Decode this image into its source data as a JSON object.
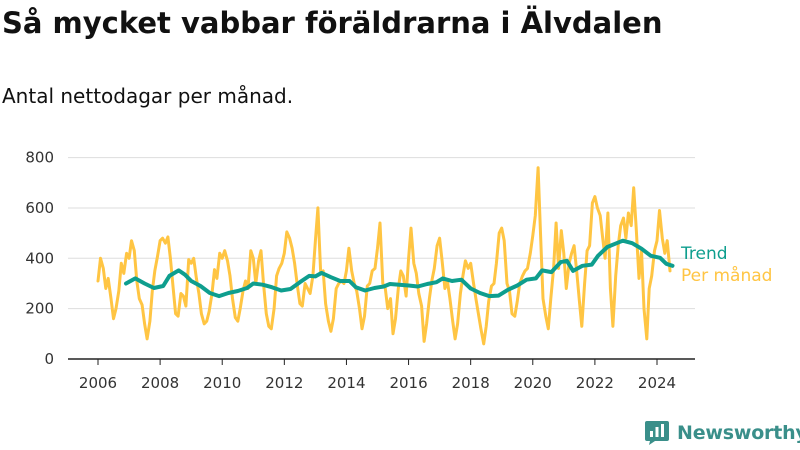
{
  "title": "Så mycket vabbar föräldrarna i Älvdalen",
  "subtitle": "Antal nettodagar per månad.",
  "brand": {
    "name": "Newsworthy",
    "icon": "chart-bubble-icon"
  },
  "colors": {
    "monthly": "#FFC543",
    "trend": "#0E9E8E",
    "axis": "#222222",
    "grid": "#dddddd"
  },
  "chart_data": {
    "type": "line",
    "x_unit": "year",
    "xlim": [
      2005.6,
      2024.9
    ],
    "ylim": [
      0,
      850
    ],
    "x_ticks": [
      2006,
      2008,
      2010,
      2012,
      2014,
      2016,
      2018,
      2020,
      2022,
      2024
    ],
    "y_ticks": [
      0,
      200,
      400,
      600,
      800
    ],
    "grid": "horizontal",
    "legend": "right-of-plot",
    "series": [
      {
        "name": "Trend",
        "color": "#0E9E8E",
        "points": [
          [
            2006.9,
            300
          ],
          [
            2007.2,
            320
          ],
          [
            2007.5,
            300
          ],
          [
            2007.8,
            282
          ],
          [
            2008.1,
            290
          ],
          [
            2008.3,
            330
          ],
          [
            2008.6,
            352
          ],
          [
            2008.8,
            335
          ],
          [
            2009.0,
            310
          ],
          [
            2009.3,
            290
          ],
          [
            2009.6,
            262
          ],
          [
            2009.9,
            250
          ],
          [
            2010.2,
            262
          ],
          [
            2010.5,
            270
          ],
          [
            2010.8,
            282
          ],
          [
            2011.0,
            300
          ],
          [
            2011.3,
            295
          ],
          [
            2011.6,
            285
          ],
          [
            2011.9,
            272
          ],
          [
            2012.2,
            278
          ],
          [
            2012.5,
            305
          ],
          [
            2012.8,
            330
          ],
          [
            2013.0,
            328
          ],
          [
            2013.2,
            342
          ],
          [
            2013.5,
            325
          ],
          [
            2013.8,
            310
          ],
          [
            2014.1,
            310
          ],
          [
            2014.3,
            285
          ],
          [
            2014.6,
            272
          ],
          [
            2014.9,
            282
          ],
          [
            2015.2,
            288
          ],
          [
            2015.4,
            298
          ],
          [
            2015.7,
            295
          ],
          [
            2016.0,
            292
          ],
          [
            2016.3,
            288
          ],
          [
            2016.6,
            298
          ],
          [
            2016.9,
            305
          ],
          [
            2017.1,
            320
          ],
          [
            2017.4,
            310
          ],
          [
            2017.7,
            315
          ],
          [
            2018.0,
            280
          ],
          [
            2018.3,
            262
          ],
          [
            2018.6,
            250
          ],
          [
            2018.9,
            252
          ],
          [
            2019.2,
            275
          ],
          [
            2019.5,
            292
          ],
          [
            2019.8,
            315
          ],
          [
            2020.1,
            320
          ],
          [
            2020.3,
            352
          ],
          [
            2020.6,
            345
          ],
          [
            2020.9,
            385
          ],
          [
            2021.1,
            390
          ],
          [
            2021.3,
            350
          ],
          [
            2021.6,
            370
          ],
          [
            2021.9,
            375
          ],
          [
            2022.1,
            410
          ],
          [
            2022.4,
            445
          ],
          [
            2022.7,
            460
          ],
          [
            2022.9,
            470
          ],
          [
            2023.2,
            460
          ],
          [
            2023.5,
            438
          ],
          [
            2023.8,
            410
          ],
          [
            2024.1,
            402
          ],
          [
            2024.3,
            378
          ],
          [
            2024.5,
            370
          ]
        ]
      },
      {
        "name": "Per månad",
        "color": "#FFC543",
        "points": [
          [
            2006.0,
            310
          ],
          [
            2006.08,
            400
          ],
          [
            2006.17,
            360
          ],
          [
            2006.25,
            280
          ],
          [
            2006.33,
            320
          ],
          [
            2006.42,
            240
          ],
          [
            2006.5,
            160
          ],
          [
            2006.58,
            200
          ],
          [
            2006.67,
            270
          ],
          [
            2006.75,
            380
          ],
          [
            2006.83,
            340
          ],
          [
            2006.92,
            420
          ],
          [
            2007.0,
            400
          ],
          [
            2007.08,
            470
          ],
          [
            2007.17,
            430
          ],
          [
            2007.25,
            310
          ],
          [
            2007.33,
            240
          ],
          [
            2007.42,
            215
          ],
          [
            2007.5,
            140
          ],
          [
            2007.58,
            80
          ],
          [
            2007.67,
            150
          ],
          [
            2007.75,
            270
          ],
          [
            2007.83,
            350
          ],
          [
            2007.92,
            410
          ],
          [
            2008.0,
            470
          ],
          [
            2008.08,
            480
          ],
          [
            2008.17,
            460
          ],
          [
            2008.25,
            485
          ],
          [
            2008.33,
            400
          ],
          [
            2008.42,
            280
          ],
          [
            2008.5,
            180
          ],
          [
            2008.58,
            170
          ],
          [
            2008.67,
            260
          ],
          [
            2008.75,
            250
          ],
          [
            2008.83,
            210
          ],
          [
            2008.92,
            395
          ],
          [
            2009.0,
            380
          ],
          [
            2009.08,
            400
          ],
          [
            2009.17,
            320
          ],
          [
            2009.25,
            260
          ],
          [
            2009.33,
            180
          ],
          [
            2009.42,
            140
          ],
          [
            2009.5,
            150
          ],
          [
            2009.58,
            190
          ],
          [
            2009.67,
            260
          ],
          [
            2009.75,
            355
          ],
          [
            2009.83,
            320
          ],
          [
            2009.92,
            420
          ],
          [
            2010.0,
            400
          ],
          [
            2010.08,
            430
          ],
          [
            2010.17,
            390
          ],
          [
            2010.25,
            330
          ],
          [
            2010.33,
            240
          ],
          [
            2010.42,
            165
          ],
          [
            2010.5,
            150
          ],
          [
            2010.58,
            200
          ],
          [
            2010.67,
            270
          ],
          [
            2010.75,
            310
          ],
          [
            2010.83,
            280
          ],
          [
            2010.92,
            430
          ],
          [
            2011.0,
            400
          ],
          [
            2011.08,
            300
          ],
          [
            2011.17,
            390
          ],
          [
            2011.25,
            430
          ],
          [
            2011.33,
            300
          ],
          [
            2011.42,
            180
          ],
          [
            2011.5,
            130
          ],
          [
            2011.58,
            120
          ],
          [
            2011.67,
            200
          ],
          [
            2011.75,
            330
          ],
          [
            2011.83,
            360
          ],
          [
            2011.92,
            380
          ],
          [
            2012.0,
            420
          ],
          [
            2012.08,
            505
          ],
          [
            2012.17,
            480
          ],
          [
            2012.25,
            440
          ],
          [
            2012.33,
            380
          ],
          [
            2012.42,
            290
          ],
          [
            2012.5,
            220
          ],
          [
            2012.58,
            210
          ],
          [
            2012.67,
            300
          ],
          [
            2012.75,
            280
          ],
          [
            2012.83,
            260
          ],
          [
            2012.92,
            330
          ],
          [
            2013.0,
            470
          ],
          [
            2013.08,
            600
          ],
          [
            2013.17,
            340
          ],
          [
            2013.25,
            350
          ],
          [
            2013.33,
            220
          ],
          [
            2013.42,
            150
          ],
          [
            2013.5,
            110
          ],
          [
            2013.58,
            160
          ],
          [
            2013.67,
            280
          ],
          [
            2013.75,
            300
          ],
          [
            2013.83,
            310
          ],
          [
            2013.92,
            300
          ],
          [
            2014.0,
            350
          ],
          [
            2014.08,
            440
          ],
          [
            2014.17,
            350
          ],
          [
            2014.25,
            300
          ],
          [
            2014.33,
            270
          ],
          [
            2014.42,
            200
          ],
          [
            2014.5,
            120
          ],
          [
            2014.58,
            170
          ],
          [
            2014.67,
            290
          ],
          [
            2014.75,
            300
          ],
          [
            2014.83,
            350
          ],
          [
            2014.92,
            360
          ],
          [
            2015.0,
            440
          ],
          [
            2015.08,
            540
          ],
          [
            2015.17,
            300
          ],
          [
            2015.25,
            280
          ],
          [
            2015.33,
            200
          ],
          [
            2015.42,
            240
          ],
          [
            2015.5,
            100
          ],
          [
            2015.58,
            160
          ],
          [
            2015.67,
            280
          ],
          [
            2015.75,
            350
          ],
          [
            2015.83,
            330
          ],
          [
            2015.92,
            250
          ],
          [
            2016.0,
            400
          ],
          [
            2016.08,
            520
          ],
          [
            2016.17,
            380
          ],
          [
            2016.25,
            340
          ],
          [
            2016.33,
            260
          ],
          [
            2016.42,
            210
          ],
          [
            2016.5,
            70
          ],
          [
            2016.58,
            140
          ],
          [
            2016.67,
            240
          ],
          [
            2016.75,
            310
          ],
          [
            2016.83,
            360
          ],
          [
            2016.92,
            450
          ],
          [
            2017.0,
            480
          ],
          [
            2017.08,
            390
          ],
          [
            2017.17,
            280
          ],
          [
            2017.25,
            310
          ],
          [
            2017.33,
            240
          ],
          [
            2017.42,
            150
          ],
          [
            2017.5,
            80
          ],
          [
            2017.58,
            140
          ],
          [
            2017.67,
            260
          ],
          [
            2017.75,
            330
          ],
          [
            2017.83,
            390
          ],
          [
            2017.92,
            360
          ],
          [
            2018.0,
            380
          ],
          [
            2018.08,
            310
          ],
          [
            2018.17,
            240
          ],
          [
            2018.25,
            180
          ],
          [
            2018.33,
            120
          ],
          [
            2018.42,
            60
          ],
          [
            2018.5,
            130
          ],
          [
            2018.58,
            230
          ],
          [
            2018.67,
            290
          ],
          [
            2018.75,
            300
          ],
          [
            2018.83,
            380
          ],
          [
            2018.92,
            500
          ],
          [
            2019.0,
            520
          ],
          [
            2019.08,
            470
          ],
          [
            2019.17,
            300
          ],
          [
            2019.25,
            270
          ],
          [
            2019.33,
            180
          ],
          [
            2019.42,
            170
          ],
          [
            2019.5,
            230
          ],
          [
            2019.58,
            300
          ],
          [
            2019.67,
            330
          ],
          [
            2019.75,
            350
          ],
          [
            2019.83,
            360
          ],
          [
            2019.92,
            420
          ],
          [
            2020.0,
            490
          ],
          [
            2020.08,
            570
          ],
          [
            2020.17,
            760
          ],
          [
            2020.25,
            500
          ],
          [
            2020.33,
            240
          ],
          [
            2020.42,
            170
          ],
          [
            2020.5,
            120
          ],
          [
            2020.58,
            240
          ],
          [
            2020.67,
            360
          ],
          [
            2020.75,
            540
          ],
          [
            2020.83,
            360
          ],
          [
            2020.92,
            510
          ],
          [
            2021.0,
            420
          ],
          [
            2021.08,
            280
          ],
          [
            2021.17,
            380
          ],
          [
            2021.25,
            420
          ],
          [
            2021.33,
            450
          ],
          [
            2021.42,
            340
          ],
          [
            2021.5,
            230
          ],
          [
            2021.58,
            130
          ],
          [
            2021.67,
            300
          ],
          [
            2021.75,
            430
          ],
          [
            2021.83,
            450
          ],
          [
            2021.92,
            620
          ],
          [
            2022.0,
            645
          ],
          [
            2022.08,
            600
          ],
          [
            2022.17,
            570
          ],
          [
            2022.25,
            480
          ],
          [
            2022.33,
            400
          ],
          [
            2022.42,
            580
          ],
          [
            2022.5,
            280
          ],
          [
            2022.58,
            130
          ],
          [
            2022.67,
            330
          ],
          [
            2022.75,
            450
          ],
          [
            2022.83,
            530
          ],
          [
            2022.92,
            560
          ],
          [
            2023.0,
            480
          ],
          [
            2023.08,
            580
          ],
          [
            2023.17,
            530
          ],
          [
            2023.25,
            680
          ],
          [
            2023.33,
            520
          ],
          [
            2023.42,
            320
          ],
          [
            2023.5,
            430
          ],
          [
            2023.58,
            200
          ],
          [
            2023.67,
            80
          ],
          [
            2023.75,
            280
          ],
          [
            2023.83,
            330
          ],
          [
            2023.92,
            430
          ],
          [
            2024.0,
            470
          ],
          [
            2024.08,
            590
          ],
          [
            2024.17,
            480
          ],
          [
            2024.25,
            420
          ],
          [
            2024.33,
            470
          ],
          [
            2024.42,
            350
          ]
        ]
      }
    ]
  }
}
